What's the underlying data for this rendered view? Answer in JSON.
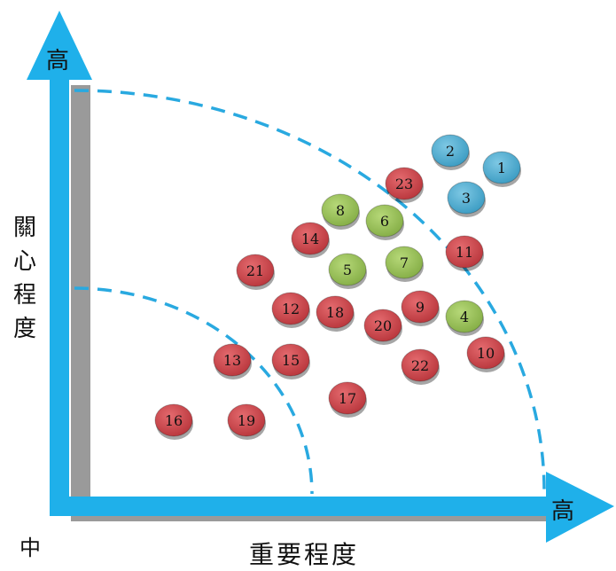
{
  "labels": {
    "y_axis_end": "高",
    "x_axis_end": "高",
    "origin": "中",
    "x_axis_title": "重要程度",
    "y_axis_title": "關心程度"
  },
  "colors": {
    "axis": "#1fb0ea",
    "dash": "#29a9e0",
    "red": "#c0393f",
    "green": "#8ab548",
    "blue": "#3a9fc4"
  },
  "items": [
    {
      "id": "1",
      "color": "blue"
    },
    {
      "id": "2",
      "color": "blue"
    },
    {
      "id": "3",
      "color": "blue"
    },
    {
      "id": "4",
      "color": "green"
    },
    {
      "id": "5",
      "color": "green"
    },
    {
      "id": "6",
      "color": "green"
    },
    {
      "id": "7",
      "color": "green"
    },
    {
      "id": "8",
      "color": "green"
    },
    {
      "id": "9",
      "color": "red"
    },
    {
      "id": "10",
      "color": "red"
    },
    {
      "id": "11",
      "color": "red"
    },
    {
      "id": "12",
      "color": "red"
    },
    {
      "id": "13",
      "color": "red"
    },
    {
      "id": "14",
      "color": "red"
    },
    {
      "id": "15",
      "color": "red"
    },
    {
      "id": "16",
      "color": "red"
    },
    {
      "id": "17",
      "color": "red"
    },
    {
      "id": "18",
      "color": "red"
    },
    {
      "id": "19",
      "color": "red"
    },
    {
      "id": "20",
      "color": "red"
    },
    {
      "id": "21",
      "color": "red"
    },
    {
      "id": "22",
      "color": "red"
    },
    {
      "id": "23",
      "color": "red"
    }
  ]
}
